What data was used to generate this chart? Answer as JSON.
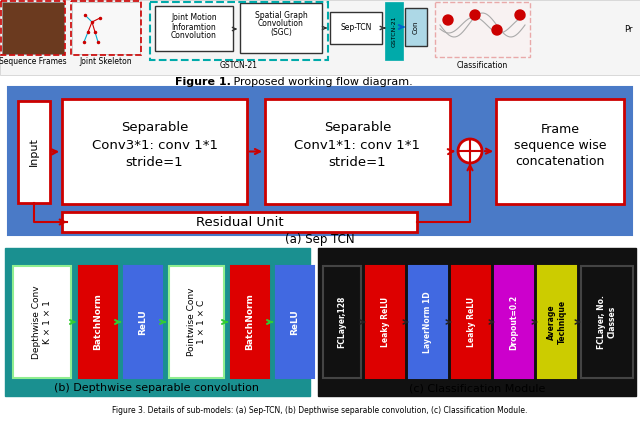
{
  "fig1_caption_bold": "Figure 1.",
  "fig1_caption_rest": " Proposed working flow diagram.",
  "caption_a": "(a) Sep TCN",
  "caption_b": "(b) Depthwise separable convolution",
  "caption_c": "(c) Classification Module",
  "fig3_caption": "Figure 3. Details of sub-models: (a) Sep-TCN, (b) Depthwise separable convolution, (c) Classification Module.",
  "sep_tcn_bg": "#4a7ac7",
  "red_border": "#cc0000",
  "teal_bg": "#1a9090",
  "black_bg": "#111111",
  "white": "#ffffff",
  "red_box": "#dd0000",
  "blue_box": "#4169e1",
  "yellow_box": "#dddd00",
  "magenta_box": "#cc00cc",
  "green_arrow": "#33cc33",
  "black_arrow": "#333333",
  "red_arrow": "#cc0000"
}
